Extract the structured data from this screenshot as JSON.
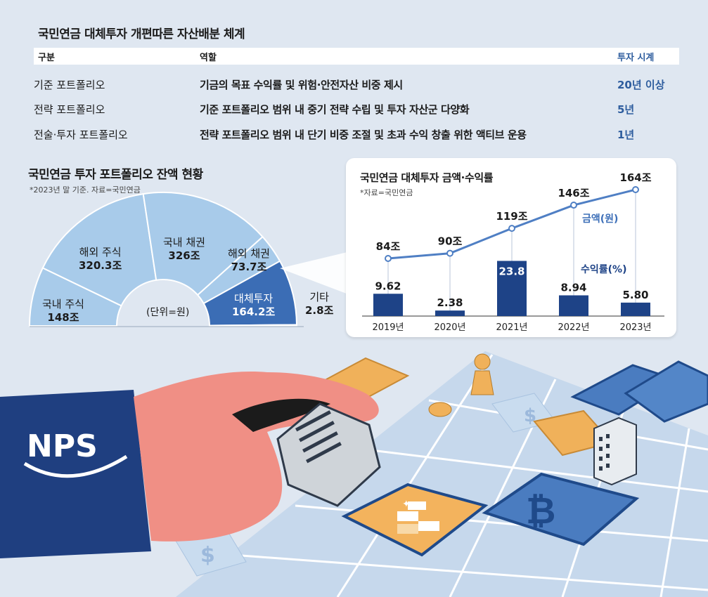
{
  "table": {
    "title": "국민연금 대체투자 개편따른 자산배분 체계",
    "headers": {
      "col1": "구분",
      "col2": "역할",
      "col3": "투자 시계"
    },
    "rows": [
      {
        "category": "기준 포트폴리오",
        "role": "기금의 목표 수익률 및 위험·안전자산 비중 제시",
        "horizon": "20년 이상"
      },
      {
        "category": "전략 포트폴리오",
        "role": "기준 포트폴리오 범위 내 중기 전략 수립 및 투자 자산군 다양화",
        "horizon": "5년"
      },
      {
        "category": "전술·투자 포트폴리오",
        "role": "전략 포트폴리오 범위 내 단기 비중 조절 및 초과 수익 창출 위한 액티브 운용",
        "horizon": "1년"
      }
    ]
  },
  "portfolio": {
    "title": "국민연금 투자 포트폴리오 잔액 현황",
    "note": "*2023년 말 기준. 자료=국민연금",
    "unit": "(단위=원)"
  },
  "alt": {
    "title": "국민연금 대체투자 금액·수익률",
    "note": "*자료=국민연금",
    "legend_amount": "금액(원)",
    "legend_return": "수익률(%)"
  },
  "chart_data": [
    {
      "type": "pie",
      "title": "국민연금 투자 포트폴리오 잔액 현황",
      "unit": "(단위=원)",
      "categories": [
        "국내 주식",
        "해외 주식",
        "국내 채권",
        "해외 채권",
        "대체투자",
        "기타"
      ],
      "values": [
        148,
        320.3,
        326,
        73.7,
        164.2,
        2.8
      ],
      "labels": [
        "148조",
        "320.3조",
        "326조",
        "73.7조",
        "164.2조",
        "2.8조"
      ],
      "highlight": "대체투자",
      "colors": {
        "base": "#a8cbea",
        "highlight": "#3b6db5"
      }
    },
    {
      "type": "bar",
      "title": "국민연금 대체투자 금액·수익률",
      "categories": [
        "2019년",
        "2020년",
        "2021년",
        "2022년",
        "2023년"
      ],
      "series": [
        {
          "name": "수익률(%)",
          "type": "bar",
          "values": [
            9.62,
            2.38,
            23.8,
            8.94,
            5.8
          ],
          "labels": [
            "9.62",
            "2.38",
            "23.8",
            "8.94",
            "5.80"
          ],
          "color": "#1e4387"
        },
        {
          "name": "금액(원)",
          "type": "line",
          "values": [
            84,
            90,
            119,
            146,
            164
          ],
          "labels": [
            "84조",
            "90조",
            "119조",
            "146조",
            "164조"
          ],
          "color": "#4f7fc4"
        }
      ]
    }
  ],
  "illustration": {
    "logo_text": "NPS",
    "icons": [
      "dollar-icon",
      "bitcoin-icon",
      "gold-bars-icon",
      "building-icon",
      "game-pawn-icon"
    ]
  }
}
